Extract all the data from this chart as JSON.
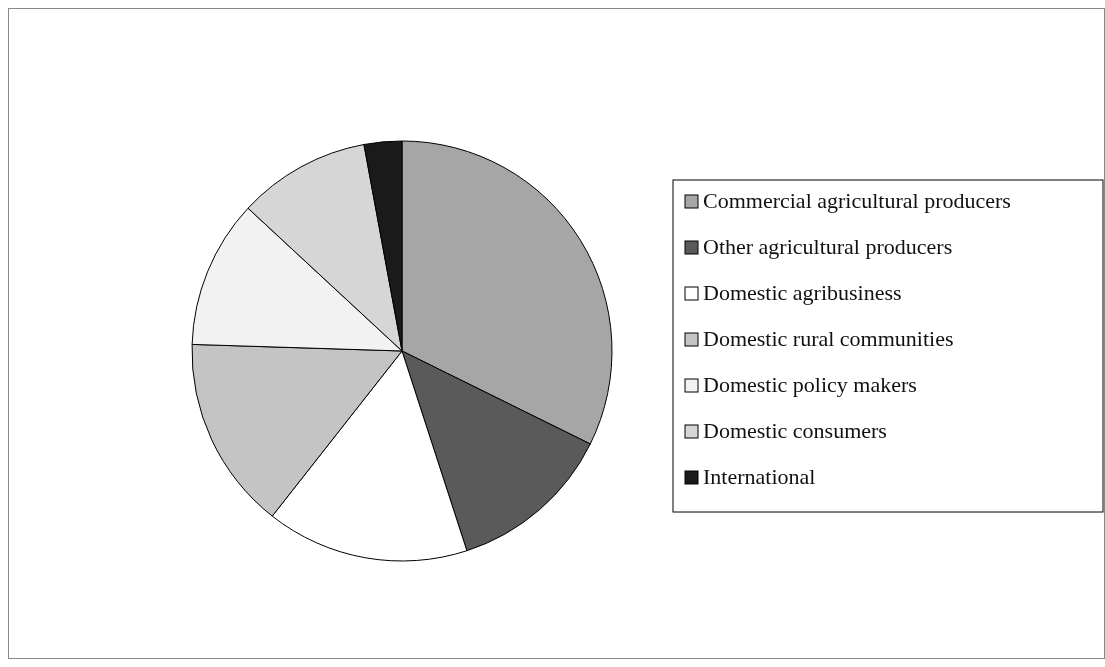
{
  "chart_data": {
    "type": "pie",
    "categories": [
      "Commercial agricultural producers",
      "Other agricultural producers",
      "Domestic agribusiness",
      "Domestic rural communities",
      "Domestic policy makers",
      "Domestic consumers",
      "International"
    ],
    "values": [
      32.3,
      12.7,
      15.6,
      14.9,
      11.4,
      10.2,
      2.9
    ],
    "colors": [
      "#a6a6a6",
      "#5a5a5a",
      "#ffffff",
      "#c4c4c4",
      "#f2f2f2",
      "#d6d6d6",
      "#1a1a1a"
    ],
    "legend": "right"
  }
}
